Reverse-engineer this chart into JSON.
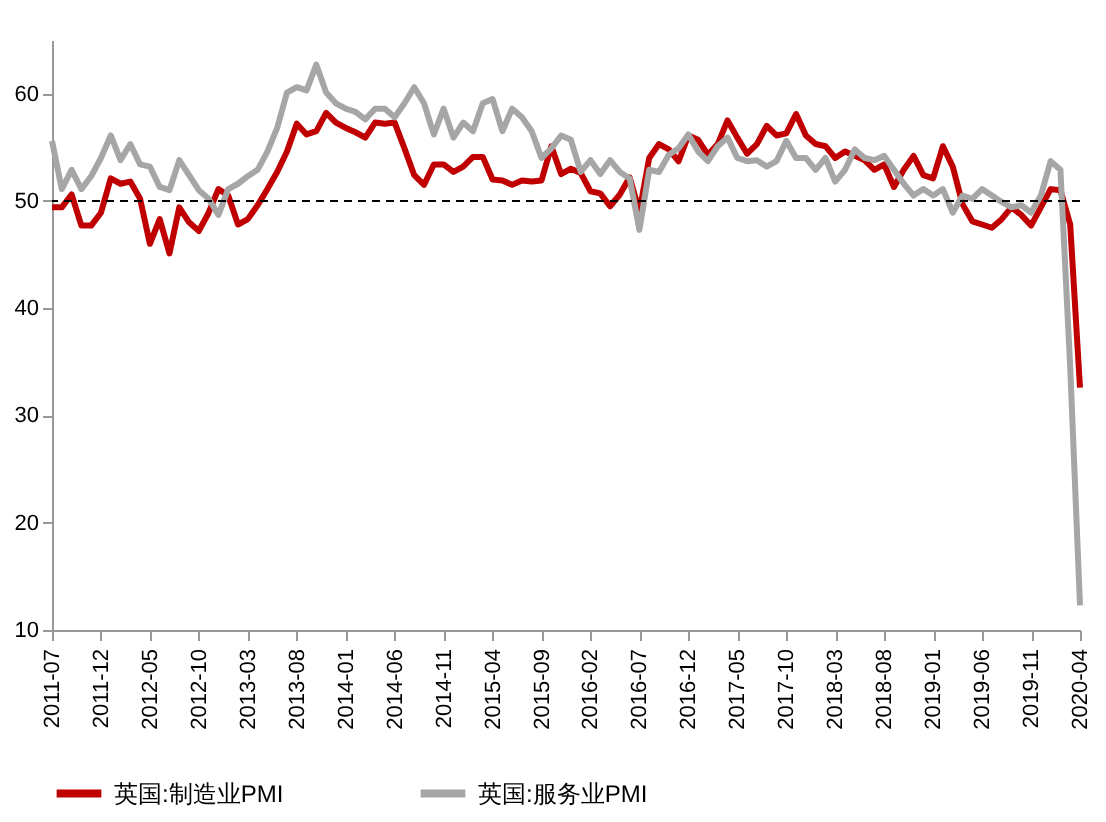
{
  "chart_data": {
    "type": "line",
    "categories": [
      "2011-07",
      null,
      null,
      null,
      null,
      "2011-12",
      null,
      null,
      null,
      null,
      "2012-05",
      null,
      null,
      null,
      null,
      "2012-10",
      null,
      null,
      null,
      null,
      "2013-03",
      null,
      null,
      null,
      null,
      "2013-08",
      null,
      null,
      null,
      null,
      "2014-01",
      null,
      null,
      null,
      null,
      "2014-06",
      null,
      null,
      null,
      null,
      "2014-11",
      null,
      null,
      null,
      null,
      "2015-04",
      null,
      null,
      null,
      null,
      "2015-09",
      null,
      null,
      null,
      null,
      "2016-02",
      null,
      null,
      null,
      null,
      "2016-07",
      null,
      null,
      null,
      null,
      "2016-12",
      null,
      null,
      null,
      null,
      "2017-05",
      null,
      null,
      null,
      null,
      "2017-10",
      null,
      null,
      null,
      null,
      "2018-03",
      null,
      null,
      null,
      null,
      "2018-08",
      null,
      null,
      null,
      null,
      "2019-01",
      null,
      null,
      null,
      null,
      "2019-06",
      null,
      null,
      null,
      null,
      "2019-11",
      null,
      null,
      null,
      null,
      "2020-04"
    ],
    "series": [
      {
        "name": "英国:制造业PMI",
        "color": "#c00000",
        "values": [
          49.4,
          49.4,
          50.6,
          47.7,
          47.7,
          48.9,
          52.1,
          51.6,
          51.8,
          50.2,
          46.0,
          48.3,
          45.1,
          49.4,
          48.0,
          47.2,
          48.9,
          51.1,
          50.5,
          47.8,
          48.3,
          49.6,
          51.1,
          52.7,
          54.6,
          57.2,
          56.2,
          56.5,
          58.2,
          57.3,
          56.8,
          56.4,
          55.9,
          57.3,
          57.2,
          57.3,
          54.9,
          52.4,
          51.5,
          53.4,
          53.4,
          52.7,
          53.2,
          54.1,
          54.1,
          52.0,
          51.9,
          51.5,
          51.9,
          51.8,
          51.9,
          55.1,
          52.5,
          53.0,
          52.6,
          50.9,
          50.7,
          49.5,
          50.6,
          52.2,
          49.0,
          54.0,
          55.3,
          54.8,
          53.7,
          56.1,
          55.7,
          54.3,
          55.3,
          57.5,
          55.9,
          54.4,
          55.3,
          57.0,
          56.1,
          56.3,
          58.1,
          56.1,
          55.3,
          55.1,
          54.0,
          54.6,
          54.2,
          53.8,
          52.9,
          53.4,
          51.3,
          52.9,
          54.2,
          52.4,
          52.1,
          55.1,
          53.2,
          49.7,
          48.1,
          47.8,
          47.5,
          48.3,
          49.4,
          48.7,
          47.7,
          49.4,
          51.1,
          51.0,
          47.8,
          32.6
        ]
      },
      {
        "name": "英国:服务业PMI",
        "color": "#a6a6a6",
        "values": [
          55.6,
          51.1,
          52.9,
          51.1,
          52.3,
          54.0,
          56.1,
          53.8,
          55.3,
          53.4,
          53.2,
          51.3,
          51.0,
          53.8,
          52.4,
          51.0,
          50.2,
          48.7,
          51.1,
          51.6,
          52.3,
          52.9,
          54.6,
          56.8,
          60.1,
          60.6,
          60.3,
          62.7,
          60.1,
          59.1,
          58.6,
          58.3,
          57.6,
          58.6,
          58.6,
          57.8,
          59.1,
          60.6,
          59.1,
          56.2,
          58.6,
          55.9,
          57.3,
          56.5,
          59.1,
          59.5,
          56.5,
          58.6,
          57.8,
          56.5,
          54.0,
          54.9,
          56.1,
          55.7,
          52.7,
          53.8,
          52.5,
          53.8,
          52.7,
          52.1,
          47.3,
          52.9,
          52.7,
          54.3,
          54.9,
          56.2,
          54.6,
          53.7,
          55.1,
          55.9,
          54.0,
          53.7,
          53.8,
          53.2,
          53.7,
          55.6,
          54.0,
          54.0,
          52.9,
          54.0,
          51.8,
          52.9,
          54.8,
          54.0,
          53.8,
          54.2,
          52.9,
          51.6,
          50.5,
          51.1,
          50.5,
          51.1,
          48.9,
          50.5,
          50.2,
          51.1,
          50.5,
          49.9,
          49.4,
          49.6,
          48.9,
          50.5,
          53.7,
          52.9,
          34.5,
          12.3
        ]
      }
    ],
    "ylim": [
      10,
      65
    ],
    "yticks": [
      10,
      20,
      30,
      40,
      50,
      60
    ],
    "ref_lines": [
      {
        "axis": "y",
        "value": 50,
        "color": "#000000",
        "line_style": "dashed"
      }
    ],
    "legend": "bottom",
    "marker": "none",
    "line_style": "solid"
  }
}
